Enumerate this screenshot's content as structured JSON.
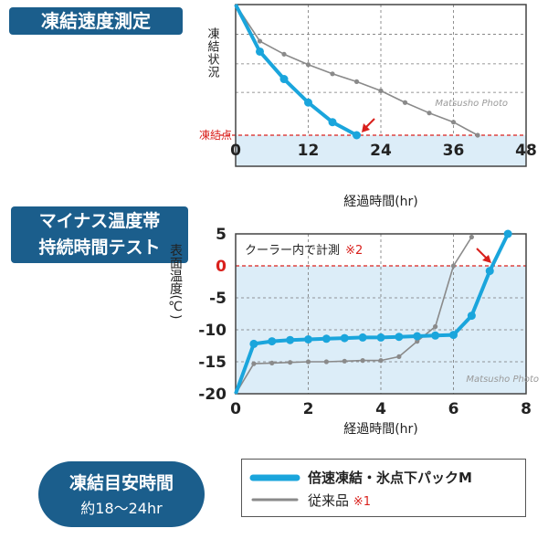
{
  "badges": {
    "chart1_title": "凍結速度測定",
    "chart2_title_line1": "マイナス温度帯",
    "chart2_title_line2": "持続時間テスト",
    "guide_title": "凍結目安時間",
    "guide_value": "約18〜24hr"
  },
  "legend": {
    "items": [
      {
        "label": "倍速凍結・氷点下パックM",
        "color": "#1aa5dc",
        "weight": "bold"
      },
      {
        "label": "従来品",
        "note": "※1",
        "color": "#8a8a8a",
        "weight": "normal"
      }
    ]
  },
  "colors": {
    "product": "#1aa5dc",
    "conventional": "#8a8a8a",
    "threshold": "#d9201c",
    "frozen_band": "#dcedf8",
    "badge": "#1b5e8c",
    "note": "#d9201c"
  },
  "chart_data": [
    {
      "type": "line",
      "ylabel": "凍結状況",
      "xlabel": "経過時間(hr)",
      "xlim": [
        0,
        48
      ],
      "xticks": [
        0,
        12,
        24,
        36,
        48
      ],
      "threshold_label": "凍結点",
      "watermark": "Matsusho Photo",
      "series": [
        {
          "name": "倍速凍結・氷点下パックM",
          "x": [
            0,
            4,
            8,
            12,
            16,
            20
          ],
          "y": [
            100,
            64,
            43,
            25,
            10,
            0
          ]
        },
        {
          "name": "従来品",
          "x": [
            0,
            4,
            8,
            12,
            16,
            20,
            24,
            28,
            32,
            36,
            40
          ],
          "y": [
            100,
            72,
            62,
            54,
            47,
            41,
            34,
            25,
            17,
            10,
            0
          ]
        }
      ]
    },
    {
      "type": "line",
      "ylabel": "表面温度(℃)",
      "xlabel": "経過時間(hr)",
      "xlim": [
        0,
        8
      ],
      "ylim": [
        -20,
        5
      ],
      "xticks": [
        0,
        2,
        4,
        6,
        8
      ],
      "yticks": [
        5,
        0,
        -5,
        -10,
        -15,
        -20
      ],
      "annotation": "クーラー内で計測",
      "annotation_note": "※2",
      "watermark": "Matsusho Photo",
      "series": [
        {
          "name": "倍速凍結・氷点下パックM",
          "x": [
            0,
            0.5,
            1,
            1.5,
            2,
            2.5,
            3,
            3.5,
            4,
            4.5,
            5,
            5.5,
            6,
            6.5,
            7,
            7.5
          ],
          "y": [
            -20,
            -12.2,
            -11.8,
            -11.6,
            -11.5,
            -11.4,
            -11.3,
            -11.2,
            -11.2,
            -11.1,
            -11.0,
            -10.9,
            -10.8,
            -7.8,
            -0.8,
            5
          ]
        },
        {
          "name": "従来品",
          "x": [
            0,
            0.5,
            1,
            1.5,
            2,
            2.5,
            3,
            3.5,
            4,
            4.5,
            5,
            5.5,
            6,
            6.5
          ],
          "y": [
            -20,
            -15.3,
            -15.2,
            -15.1,
            -15.0,
            -15.0,
            -14.9,
            -14.8,
            -14.8,
            -14.2,
            -11.8,
            -9.5,
            0,
            4.5
          ]
        }
      ]
    }
  ]
}
